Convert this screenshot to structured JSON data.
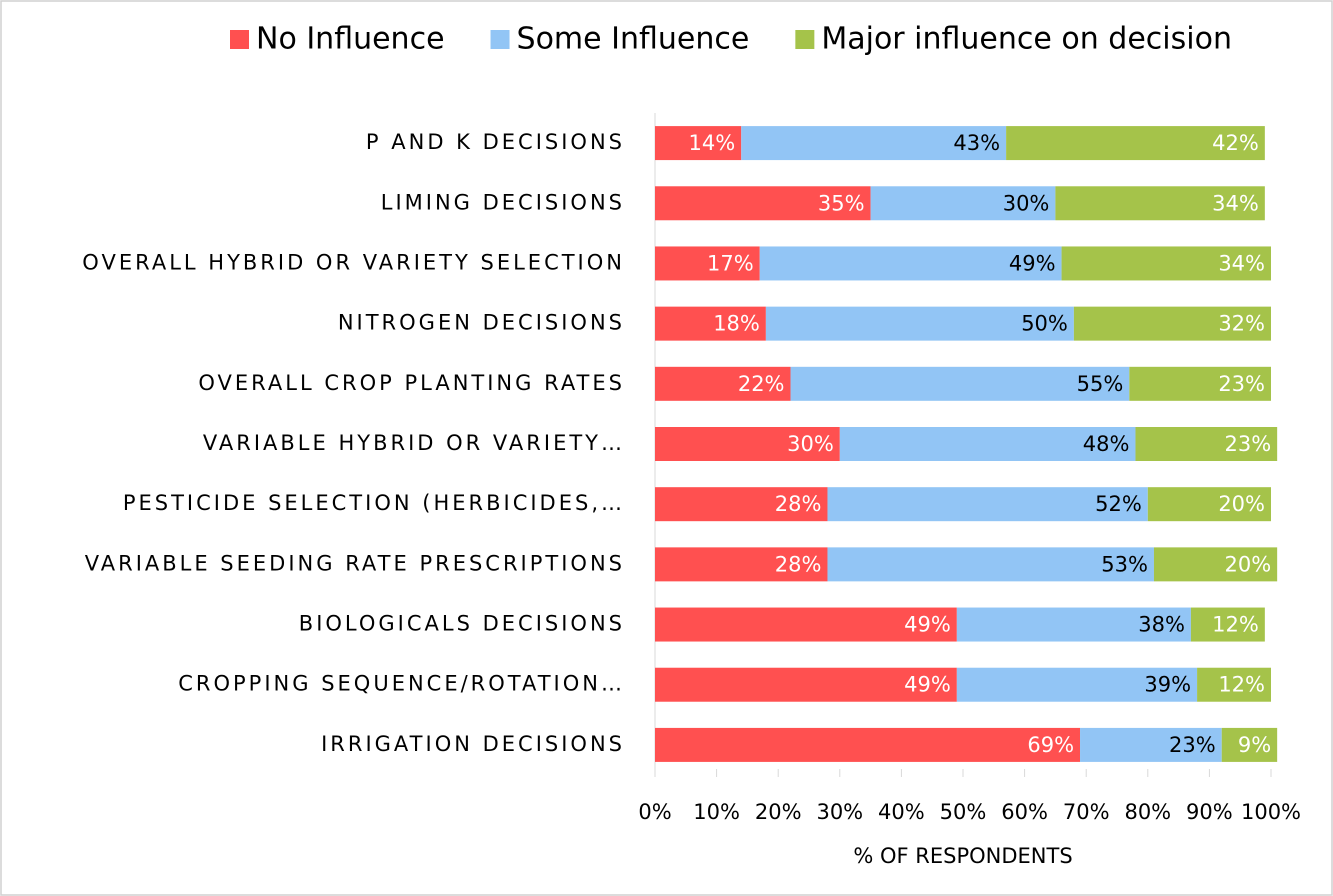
{
  "chart_data": {
    "type": "stacked-bar-horizontal",
    "x_label": "% OF RESPONDENTS",
    "categories": [
      "P AND K DECISIONS",
      "LIMING DECISIONS",
      "OVERALL HYBRID OR VARIETY SELECTION",
      "NITROGEN DECISIONS",
      "OVERALL CROP PLANTING RATES",
      "VARIABLE HYBRID OR VARIETY…",
      "PESTICIDE SELECTION (HERBICIDES,…",
      "VARIABLE SEEDING RATE PRESCRIPTIONS",
      "BIOLOGICALS DECISIONS",
      "CROPPING SEQUENCE/ROTATION…",
      "IRRIGATION DECISIONS"
    ],
    "series": [
      {
        "name": "No Influence",
        "color": "#ff5050",
        "values": [
          14,
          35,
          17,
          18,
          22,
          30,
          28,
          28,
          49,
          49,
          69
        ],
        "value_labels": [
          "14%",
          "35%",
          "17%",
          "18%",
          "22%",
          "30%",
          "28%",
          "28%",
          "49%",
          "49%",
          "69%"
        ]
      },
      {
        "name": "Some Influence",
        "color": "#92c5f5",
        "values": [
          43,
          30,
          49,
          50,
          55,
          48,
          52,
          53,
          38,
          39,
          23
        ],
        "value_labels": [
          "43%",
          "30%",
          "49%",
          "50%",
          "55%",
          "48%",
          "52%",
          "53%",
          "38%",
          "39%",
          "23%"
        ]
      },
      {
        "name": "Major influence on decision",
        "color": "#a5c34a",
        "values": [
          42,
          34,
          34,
          32,
          23,
          23,
          20,
          20,
          12,
          12,
          9
        ],
        "value_labels": [
          "42%",
          "34%",
          "34%",
          "32%",
          "23%",
          "23%",
          "20%",
          "20%",
          "12%",
          "12%",
          "9%"
        ]
      }
    ],
    "xlim": [
      0,
      100
    ],
    "xticks": [
      {
        "value": 0,
        "label": "0%"
      },
      {
        "value": 10,
        "label": "10%"
      },
      {
        "value": 20,
        "label": "20%"
      },
      {
        "value": 30,
        "label": "30%"
      },
      {
        "value": 40,
        "label": "40%"
      },
      {
        "value": 50,
        "label": "50%"
      },
      {
        "value": 60,
        "label": "60%"
      },
      {
        "value": 70,
        "label": "70%"
      },
      {
        "value": 80,
        "label": "80%"
      },
      {
        "value": 90,
        "label": "90%"
      },
      {
        "value": 100,
        "label": "100%"
      }
    ],
    "legend": "top"
  }
}
